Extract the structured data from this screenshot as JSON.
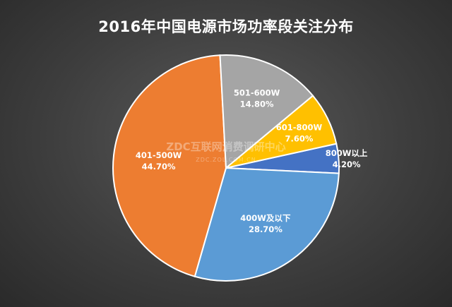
{
  "chart_data": {
    "type": "pie",
    "title": "2016年中国电源市场功率段关注分布",
    "slices": [
      {
        "label": "800W以上",
        "value": 4.2,
        "value_text": "4.20%",
        "color": "#4472c4",
        "text_color": "#ffffff"
      },
      {
        "label": "400W及以下",
        "value": 28.7,
        "value_text": "28.70%",
        "color": "#5b9bd5",
        "text_color": "#ffffff"
      },
      {
        "label": "401-500W",
        "value": 44.7,
        "value_text": "44.70%",
        "color": "#ed7d31",
        "text_color": "#ffffff"
      },
      {
        "label": "501-600W",
        "value": 14.8,
        "value_text": "14.80%",
        "color": "#a5a5a5",
        "text_color": "#ffffff"
      },
      {
        "label": "601-800W",
        "value": 7.6,
        "value_text": "7.60%",
        "color": "#ffc000",
        "text_color": "#ffffff"
      }
    ],
    "legend": "none",
    "data_labels": "inside"
  },
  "watermark": {
    "main": "ZDC互联网消费调研中心",
    "sub": "ZDC.ZOL.COM.CN"
  }
}
